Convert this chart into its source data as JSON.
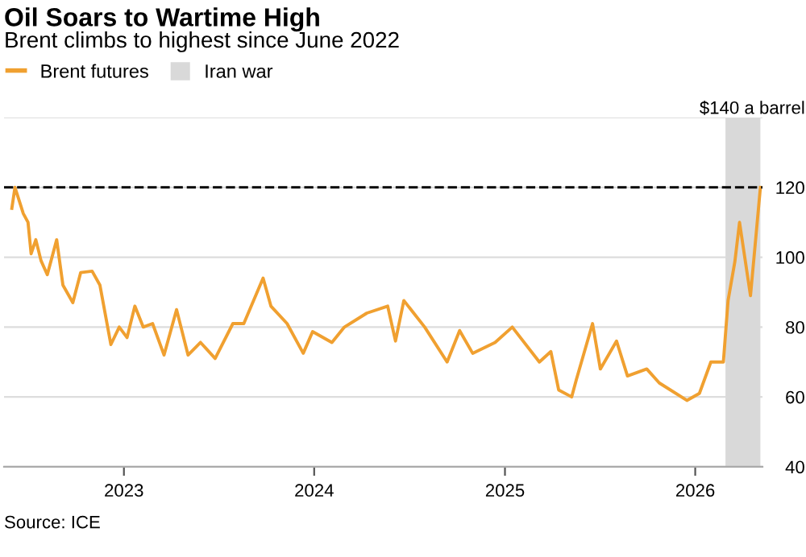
{
  "chart_data": {
    "type": "line",
    "title": "Oil Soars to Wartime High",
    "subtitle": "Brent climbs to highest since June 2022",
    "x": [
      "2022-05-31",
      "2022-06-06",
      "2022-06-22",
      "2022-07-01",
      "2022-07-07",
      "2022-07-16",
      "2022-07-26",
      "2022-08-07",
      "2022-08-25",
      "2022-09-06",
      "2022-09-25",
      "2022-10-10",
      "2022-11-01",
      "2022-11-16",
      "2022-12-07",
      "2022-12-23",
      "2023-01-07",
      "2023-01-22",
      "2023-02-07",
      "2023-02-25",
      "2023-03-19",
      "2023-04-12",
      "2023-05-04",
      "2023-05-28",
      "2023-06-25",
      "2023-07-29",
      "2023-08-19",
      "2023-09-25",
      "2023-10-10",
      "2023-11-10",
      "2023-12-11",
      "2023-12-29",
      "2024-02-04",
      "2024-02-28",
      "2024-04-11",
      "2024-05-21",
      "2024-06-05",
      "2024-06-21",
      "2024-07-31",
      "2024-09-12",
      "2024-10-06",
      "2024-10-31",
      "2024-12-13",
      "2025-01-15",
      "2025-03-08",
      "2025-03-30",
      "2025-04-14",
      "2025-05-09",
      "2025-05-18",
      "2025-06-18",
      "2025-07-03",
      "2025-08-03",
      "2025-08-24",
      "2025-09-30",
      "2025-10-24",
      "2025-12-16",
      "2026-01-09",
      "2026-01-31",
      "2026-02-24",
      "2026-03-05",
      "2026-03-18",
      "2026-03-27",
      "2026-04-05",
      "2026-04-17",
      "2026-04-26",
      "2026-05-06"
    ],
    "series": [
      {
        "name": "Brent futures",
        "color": "#f0a030",
        "values": [
          114,
          120,
          112.5,
          110,
          101,
          105,
          99,
          95,
          105,
          92,
          87,
          95.6,
          96,
          92,
          75,
          80,
          77,
          86,
          80,
          81,
          72,
          85,
          72,
          75.6,
          71,
          81,
          81,
          94,
          86,
          81,
          72.5,
          78.7,
          75.6,
          80,
          84,
          86,
          76,
          87.6,
          80,
          70,
          79,
          72.5,
          75.6,
          80,
          70,
          73,
          62,
          60,
          65,
          81,
          68,
          76,
          66,
          68,
          64,
          59,
          61,
          70,
          70,
          87.6,
          98.7,
          110,
          101,
          89,
          103.6,
          120
        ]
      }
    ],
    "bands": [
      {
        "axis": "x",
        "from": "2026-02-28",
        "to": "2026-05-06",
        "label": "Iran war",
        "color": "#d9d9d9"
      }
    ],
    "ref_lines": [
      {
        "axis": "y",
        "value": 120,
        "color": "#000000",
        "line_style": "dashed"
      }
    ],
    "xlim": [
      "2022-05-16",
      "2026-05-10"
    ],
    "xticks": [
      {
        "value": "2023-01-01",
        "label": "2023"
      },
      {
        "value": "2024-01-01",
        "label": "2024"
      },
      {
        "value": "2025-01-01",
        "label": "2025"
      },
      {
        "value": "2026-01-01",
        "label": "2026"
      }
    ],
    "ylim": [
      40,
      140
    ],
    "yticks": [
      40,
      60,
      80,
      100,
      120,
      {
        "value": 140,
        "label": "$140 a barrel"
      }
    ],
    "grid": "y",
    "legend": "top left",
    "line_style": "solid",
    "marker": "none",
    "annotations": [
      "Source: ICE"
    ]
  }
}
